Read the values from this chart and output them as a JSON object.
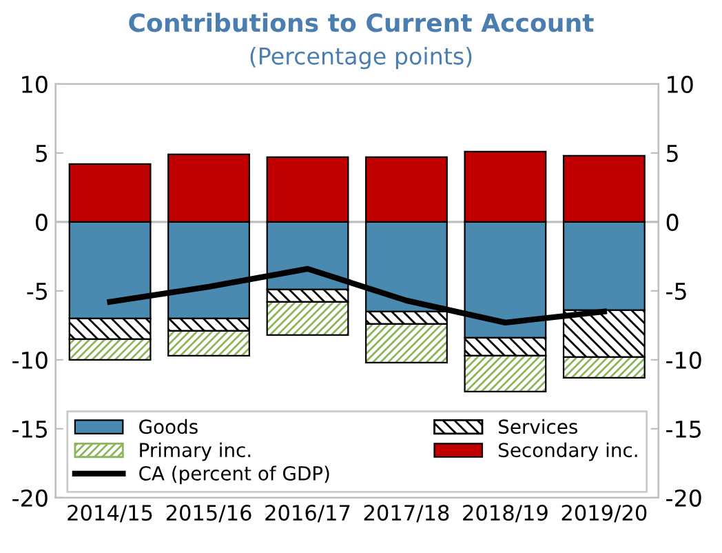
{
  "chart_data": {
    "type": "bar",
    "title": "Contributions to Current Account",
    "subtitle": "(Percentage points)",
    "categories": [
      "2014/15",
      "2015/16",
      "2016/17",
      "2017/18",
      "2018/19",
      "2019/20"
    ],
    "stacked": true,
    "series": [
      {
        "name": "Goods",
        "color": "#4a89b0",
        "values": [
          -7.0,
          -7.0,
          -4.9,
          -6.5,
          -8.4,
          -6.4
        ]
      },
      {
        "name": "Services",
        "color": "#000000",
        "values": [
          -1.5,
          -0.9,
          -0.9,
          -0.9,
          -1.3,
          -3.4
        ]
      },
      {
        "name": "Primary inc.",
        "color": "#8db65a",
        "values": [
          -1.5,
          -1.8,
          -2.4,
          -2.8,
          -2.6,
          -1.5
        ]
      },
      {
        "name": "Secondary inc.",
        "color": "#c00000",
        "values": [
          4.2,
          4.9,
          4.7,
          4.7,
          5.1,
          4.8
        ]
      },
      {
        "name": "CA (percent of GDP)",
        "type": "line",
        "color": "#000000",
        "values": [
          -5.8,
          -4.7,
          -3.4,
          -5.7,
          -7.3,
          -6.5
        ]
      }
    ],
    "ylim": [
      -20,
      10
    ],
    "yticks": [
      -20,
      -15,
      -10,
      -5,
      0,
      5,
      10
    ],
    "y2lim": [
      -20,
      10
    ],
    "y2ticks": [
      -20,
      -15,
      -10,
      -5,
      0,
      5,
      10
    ],
    "legend": "bottom"
  }
}
